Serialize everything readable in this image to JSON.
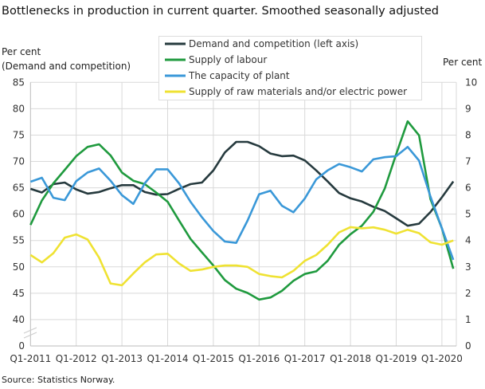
{
  "chart_data": {
    "type": "line",
    "title": "Bottlenecks in production in current quarter. Smoothed seasonally adjusted",
    "ylabel_left": [
      "Per cent",
      "(Demand  and competition)"
    ],
    "ylabel_right": "Per cent",
    "source": "Source: Statistics Norway.",
    "x_ticks": [
      "Q1-2011",
      "Q1-2012",
      "Q1-2013",
      "Q1-2014",
      "Q1-2015",
      "Q1-2016",
      "Q1-2017",
      "Q1-2018",
      "Q1-2019",
      "Q1-2020"
    ],
    "x_start": "Q1-2011",
    "x_end": "Q2-2020",
    "y_left_ticks": [
      0,
      40,
      45,
      50,
      55,
      60,
      65,
      70,
      75,
      80,
      85
    ],
    "y_left_range": [
      40,
      85
    ],
    "y_left_axis_break": true,
    "y_right_ticks": [
      0,
      1,
      2,
      3,
      4,
      5,
      6,
      7,
      8,
      9,
      10
    ],
    "y_right_range": [
      0,
      10
    ],
    "grid": true,
    "legend_placement": "top-center",
    "series": [
      {
        "name": "Demand and competition (left axis)",
        "axis": "left",
        "color": "#263a3e",
        "values": [
          64.8,
          64.1,
          65.7,
          66.0,
          64.7,
          63.9,
          64.2,
          64.9,
          65.5,
          65.5,
          64.2,
          63.7,
          63.8,
          64.8,
          65.7,
          66.0,
          68.3,
          71.7,
          73.7,
          73.7,
          72.9,
          71.5,
          71.0,
          71.1,
          70.2,
          68.3,
          66.2,
          64.0,
          63.0,
          62.4,
          61.4,
          60.6,
          59.2,
          57.8,
          58.2,
          60.4,
          63.2,
          66.2
        ]
      },
      {
        "name": "Supply of labour",
        "axis": "right",
        "color": "#1f9a3e",
        "values": [
          4.59,
          5.52,
          6.17,
          6.68,
          7.2,
          7.55,
          7.65,
          7.23,
          6.58,
          6.27,
          6.14,
          5.82,
          5.47,
          4.76,
          4.06,
          3.55,
          3.05,
          2.5,
          2.17,
          2.01,
          1.76,
          1.84,
          2.09,
          2.47,
          2.73,
          2.83,
          3.23,
          3.84,
          4.24,
          4.56,
          5.09,
          5.97,
          7.28,
          8.52,
          7.99,
          5.57,
          4.46,
          2.93
        ]
      },
      {
        "name": "The capacity of plant",
        "axis": "right",
        "color": "#3a98d8",
        "values": [
          6.23,
          6.38,
          5.62,
          5.53,
          6.25,
          6.58,
          6.73,
          6.27,
          5.72,
          5.39,
          6.17,
          6.7,
          6.7,
          6.17,
          5.47,
          4.88,
          4.36,
          3.96,
          3.91,
          4.76,
          5.75,
          5.89,
          5.32,
          5.07,
          5.59,
          6.32,
          6.66,
          6.9,
          6.78,
          6.62,
          7.08,
          7.16,
          7.2,
          7.55,
          7.03,
          5.67,
          4.46,
          3.27
        ]
      },
      {
        "name": "Supply of raw materials and/or electric power",
        "axis": "right",
        "color": "#efe232",
        "values": [
          3.45,
          3.17,
          3.52,
          4.11,
          4.23,
          4.04,
          3.35,
          2.37,
          2.3,
          2.75,
          3.17,
          3.47,
          3.5,
          3.13,
          2.85,
          2.9,
          3.0,
          3.05,
          3.05,
          3.0,
          2.73,
          2.65,
          2.6,
          2.85,
          3.23,
          3.45,
          3.84,
          4.31,
          4.51,
          4.46,
          4.5,
          4.41,
          4.26,
          4.41,
          4.28,
          3.93,
          3.84,
          4.0
        ]
      }
    ]
  }
}
